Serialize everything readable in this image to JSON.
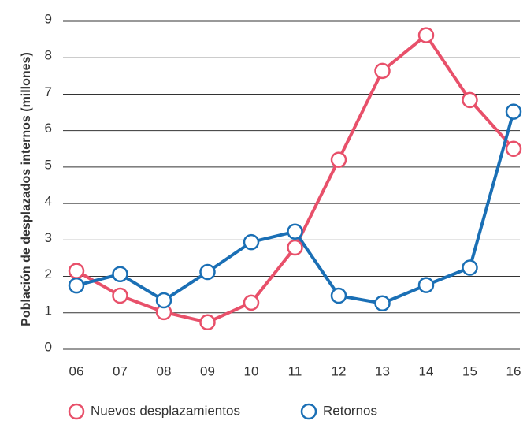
{
  "chart_data": {
    "type": "line",
    "y_label": "Población de desplazados internos  (millones)",
    "categories": [
      "06",
      "07",
      "08",
      "09",
      "10",
      "11",
      "12",
      "13",
      "14",
      "15",
      "16"
    ],
    "series": [
      {
        "name": "Nuevos desplazamientos",
        "color": "#e8506a",
        "values": [
          2.15,
          1.47,
          1.02,
          0.74,
          1.28,
          2.79,
          5.2,
          7.64,
          8.62,
          6.84,
          5.5
        ]
      },
      {
        "name": "Retornos",
        "color": "#1a6fb5",
        "values": [
          1.75,
          2.06,
          1.34,
          2.12,
          2.94,
          3.23,
          1.47,
          1.26,
          1.76,
          2.24,
          6.52
        ]
      }
    ],
    "ylim": [
      0,
      9
    ],
    "yticks": [
      0,
      1,
      2,
      3,
      4,
      5,
      6,
      7,
      8,
      9
    ],
    "grid": true,
    "legend": "bottom"
  }
}
